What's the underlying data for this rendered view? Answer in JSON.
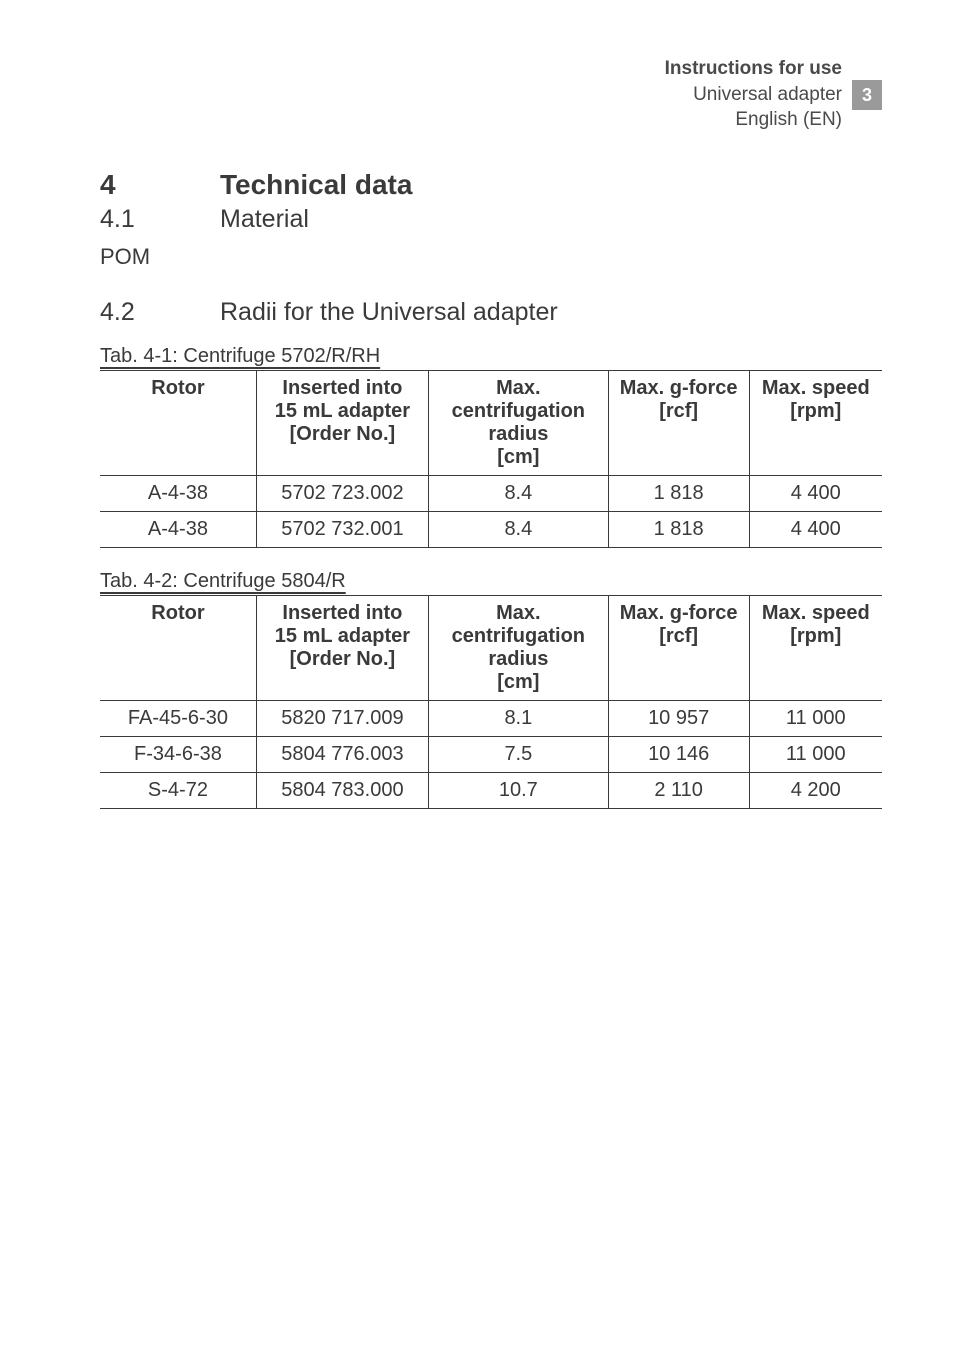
{
  "header": {
    "title": "Instructions for use",
    "subtitle": "Universal adapter",
    "lang": "English (EN)",
    "page_num": "3"
  },
  "sections": {
    "s4": {
      "num": "4",
      "title": "Technical data"
    },
    "s4_1": {
      "num": "4.1",
      "title": "Material"
    },
    "s4_1_body": "POM",
    "s4_2": {
      "num": "4.2",
      "title": "Radii for the Universal adapter"
    }
  },
  "tables": {
    "t1": {
      "caption": "Tab. 4-1: Centrifuge 5702/R/RH",
      "columns": {
        "c1": "Rotor",
        "c2a": "Inserted into",
        "c2b": "15 mL adapter",
        "c2c": "[Order No.]",
        "c3a": "Max.",
        "c3b": "centrifugation",
        "c3c": "radius",
        "c3d": "[cm]",
        "c4a": "Max. g-force",
        "c4b": "[rcf]",
        "c5a": "Max. speed",
        "c5b": "[rpm]"
      },
      "rows": [
        {
          "r": "A-4-38",
          "o": "5702 723.002",
          "rad": "8.4",
          "g": "1 818",
          "s": "4 400"
        },
        {
          "r": "A-4-38",
          "o": "5702 732.001",
          "rad": "8.4",
          "g": "1 818",
          "s": "4 400"
        }
      ]
    },
    "t2": {
      "caption": "Tab. 4-2: Centrifuge 5804/R",
      "columns": {
        "c1": "Rotor",
        "c2a": "Inserted into",
        "c2b": "15 mL adapter",
        "c2c": "[Order No.]",
        "c3a": "Max.",
        "c3b": "centrifugation",
        "c3c": "radius",
        "c3d": "[cm]",
        "c4a": "Max. g-force",
        "c4b": "[rcf]",
        "c5a": "Max. speed",
        "c5b": "[rpm]"
      },
      "rows": [
        {
          "r": "FA-45-6-30",
          "o": "5820 717.009",
          "rad": "8.1",
          "g": "10 957",
          "s": "11 000"
        },
        {
          "r": "F-34-6-38",
          "o": "5804 776.003",
          "rad": "7.5",
          "g": "10 146",
          "s": "11 000"
        },
        {
          "r": "S-4-72",
          "o": "5804 783.000",
          "rad": "10.7",
          "g": "2 110",
          "s": "4 200"
        }
      ]
    }
  }
}
